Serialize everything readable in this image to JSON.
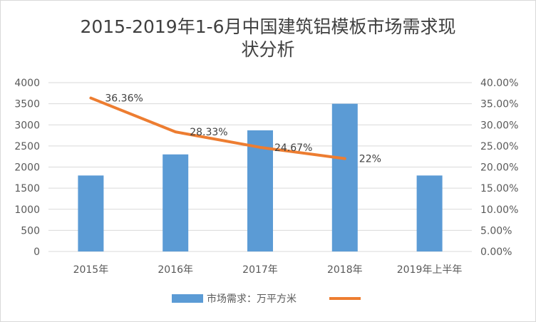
{
  "chart_data": {
    "type": "bar+line",
    "title_lines": [
      "2015-2019年1-6月中国建筑铝模板市场需求现",
      "状分析"
    ],
    "categories": [
      "2015年",
      "2016年",
      "2017年",
      "2018年",
      "2019年上半年"
    ],
    "series": [
      {
        "name": "市场需求：万平方米",
        "type": "bar",
        "axis": "left",
        "color": "#5B9BD5",
        "values": [
          1800,
          2300,
          2870,
          3500,
          1800
        ]
      },
      {
        "type": "line",
        "axis": "right",
        "color": "#ED7D31",
        "values": [
          36.36,
          28.33,
          24.67,
          22,
          null
        ],
        "data_labels": [
          "36.36%",
          "28.33%",
          "24.67%",
          "22%"
        ]
      }
    ],
    "yleft": {
      "ylim": [
        0,
        4000
      ],
      "ticks": [
        "0",
        "500",
        "1000",
        "1500",
        "2000",
        "2500",
        "3000",
        "3500",
        "4000"
      ]
    },
    "yright": {
      "ylim": [
        0,
        40
      ],
      "ticks": [
        "0.00%",
        "5.00%",
        "10.00%",
        "15.00%",
        "20.00%",
        "25.00%",
        "30.00%",
        "35.00%",
        "40.00%"
      ]
    },
    "grid": true,
    "legend": {
      "placement": "bottom",
      "entries": [
        "市场需求：万平方米",
        ""
      ]
    }
  }
}
